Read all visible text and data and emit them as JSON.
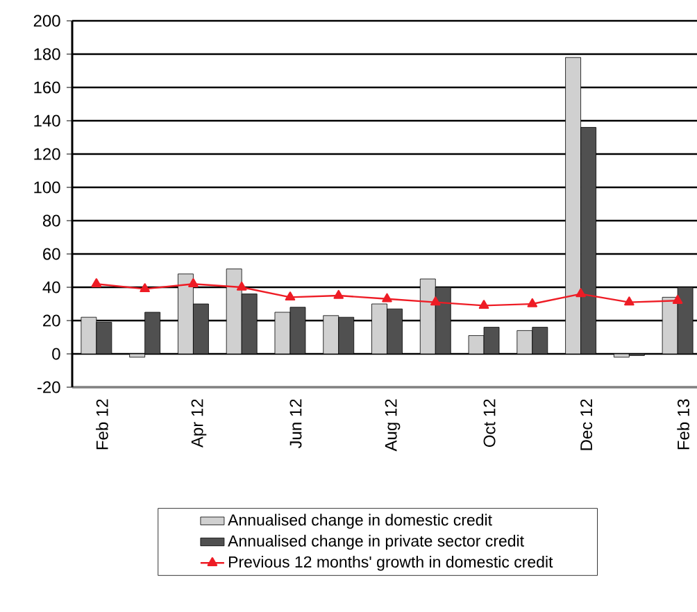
{
  "chart_data": {
    "type": "bar",
    "categories": [
      "Feb 12",
      null,
      "Apr 12",
      null,
      "Jun 12",
      null,
      "Aug 12",
      null,
      "Oct 12",
      null,
      "Dec 12",
      null,
      "Feb 13"
    ],
    "series": [
      {
        "name": "Annualised change in domestic credit",
        "color": "#d0d0d0",
        "values": [
          22,
          -2,
          48,
          51,
          25,
          23,
          30,
          45,
          11,
          14,
          178,
          -2,
          34
        ]
      },
      {
        "name": "Annualised change in private sector credit",
        "color": "#505050",
        "values": [
          19,
          25,
          30,
          36,
          28,
          22,
          27,
          40,
          16,
          16,
          136,
          -1,
          40
        ]
      },
      {
        "name": "Previous 12 months' growth in domestic credit",
        "type": "line",
        "color": "#ee1c25",
        "marker": "triangle",
        "values": [
          42,
          39,
          42,
          40,
          34,
          35,
          33,
          31,
          29,
          30,
          36,
          31,
          32
        ]
      }
    ],
    "ylim": [
      -20,
      200
    ],
    "yticks": [
      -20,
      0,
      20,
      40,
      60,
      80,
      100,
      120,
      140,
      160,
      180,
      200
    ],
    "grid": "y",
    "legend": "bottom"
  }
}
